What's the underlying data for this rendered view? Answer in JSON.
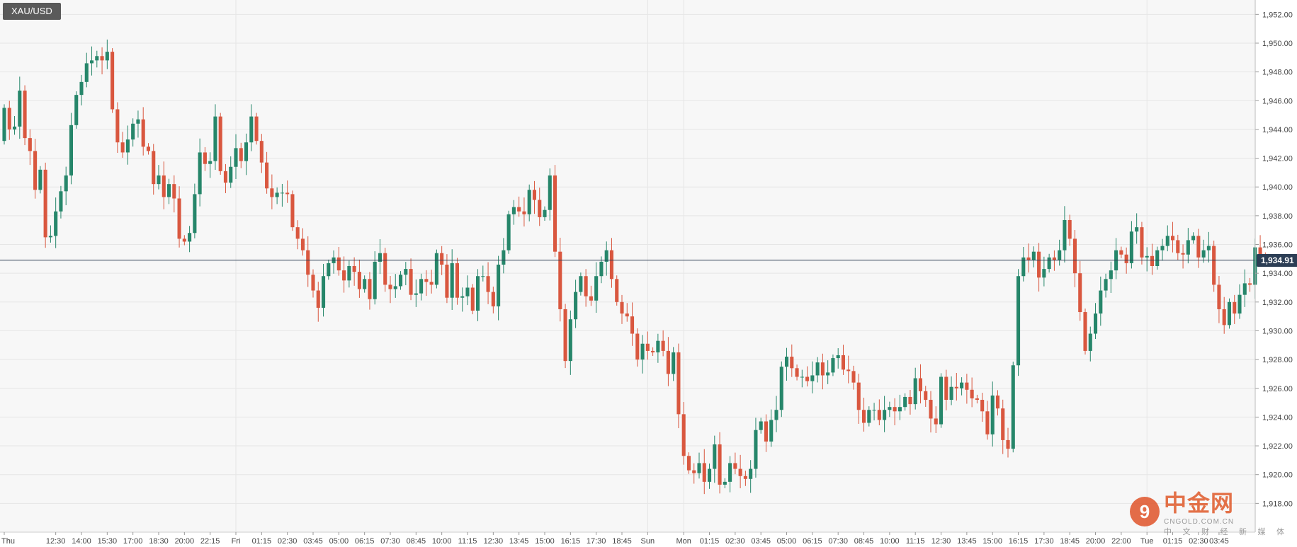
{
  "symbol": "XAU/USD",
  "current_price_label": "1,934.91",
  "watermark": {
    "logo_glyph": "9",
    "name": "中金网",
    "domain": "CNGOLD.COM.CN",
    "tagline": "中 文 财 经 新 媒 体"
  },
  "colors": {
    "up": "#26866a",
    "down": "#d9573f",
    "grid": "#e6e6e6",
    "price_line": "#2c3e55",
    "axis_text": "#444444",
    "background": "#f7f7f7"
  },
  "chart_data": {
    "type": "candlestick",
    "title": "",
    "xlabel": "",
    "ylabel": "",
    "ylim": [
      1916,
      1953
    ],
    "y_ticks": [
      "1,918.00",
      "1,920.00",
      "1,922.00",
      "1,924.00",
      "1,926.00",
      "1,928.00",
      "1,930.00",
      "1,932.00",
      "1,934.00",
      "1,936.00",
      "1,938.00",
      "1,940.00",
      "1,942.00",
      "1,944.00",
      "1,946.00",
      "1,948.00",
      "1,950.00",
      "1,952.00"
    ],
    "x_ticks": [
      "Thu",
      "12:30",
      "14:00",
      "15:30",
      "17:00",
      "18:30",
      "20:00",
      "22:15",
      "Fri",
      "01:15",
      "02:30",
      "03:45",
      "05:00",
      "06:15",
      "07:30",
      "08:45",
      "10:00",
      "11:15",
      "12:30",
      "13:45",
      "15:00",
      "16:15",
      "17:30",
      "18:45",
      "Sun",
      "Mon",
      "01:15",
      "02:30",
      "03:45",
      "05:00",
      "06:15",
      "07:30",
      "08:45",
      "10:00",
      "11:15",
      "12:30",
      "13:45",
      "15:00",
      "16:15",
      "17:30",
      "18:45",
      "20:00",
      "22:00",
      "Tue",
      "01:15",
      "02:30",
      "03:45"
    ],
    "x_tick_slots": [
      0,
      10,
      15,
      20,
      25,
      30,
      35,
      40,
      45,
      50,
      55,
      60,
      65,
      70,
      75,
      80,
      85,
      90,
      95,
      100,
      105,
      110,
      115,
      120,
      125,
      132,
      137,
      142,
      147,
      152,
      157,
      162,
      167,
      172,
      177,
      182,
      187,
      192,
      197,
      202,
      207,
      212,
      217,
      222,
      227,
      232,
      236
    ],
    "day_separator_slots": [
      45,
      125,
      132,
      222
    ],
    "current_price": 1934.91,
    "closes": [
      1945.5,
      1944,
      1944.2,
      1946.7,
      1943.4,
      1942.5,
      1939.8,
      1941.2,
      1936.5,
      1936.6,
      1938.3,
      1939.7,
      1940.8,
      1944.3,
      1946.4,
      1947.3,
      1948.6,
      1948.8,
      1949.1,
      1948.8,
      1949.4,
      1945.4,
      1943.1,
      1942.4,
      1943.3,
      1944.4,
      1944.7,
      1942.8,
      1942.5,
      1940.2,
      1940.8,
      1939.3,
      1940.2,
      1939.2,
      1936.4,
      1936.2,
      1936.8,
      1939.5,
      1942.4,
      1941.6,
      1941.8,
      1944.9,
      1941.1,
      1940.3,
      1941.4,
      1942.7,
      1941.8,
      1943.1,
      1944.9,
      1943.2,
      1941.7,
      1939.9,
      1939.3,
      1939.6,
      1939.6,
      1939.5,
      1937.2,
      1936.4,
      1935.6,
      1933.9,
      1932.8,
      1931.6,
      1933.8,
      1934.7,
      1935.1,
      1934.2,
      1933.5,
      1934.5,
      1934.1,
      1932.9,
      1933.6,
      1932.2,
      1934.8,
      1935.4,
      1933.2,
      1932.9,
      1933.1,
      1933.9,
      1934.3,
      1932.5,
      1932.6,
      1933.6,
      1933.4,
      1933.2,
      1935.4,
      1934.6,
      1932.3,
      1934.7,
      1932.3,
      1932.4,
      1933,
      1931.4,
      1933.8,
      1933.8,
      1932.7,
      1931.7,
      1934.6,
      1935.6,
      1938.1,
      1938.6,
      1938.3,
      1938.1,
      1939.8,
      1939.1,
      1937.9,
      1938.4,
      1940.8,
      1935.5,
      1931.5,
      1927.9,
      1930.8,
      1932.7,
      1933.8,
      1932.4,
      1932.1,
      1933.8,
      1934.8,
      1935.6,
      1933.6,
      1932,
      1931.2,
      1931,
      1929.8,
      1928,
      1929.1,
      1928.6,
      1928.5,
      1929.3,
      1928.6,
      1927,
      1928.5,
      1924.2,
      1921.3,
      1920.3,
      1920.1,
      1920.8,
      1919.5,
      1920.4,
      1922.1,
      1919.3,
      1919.5,
      1920.8,
      1920.4,
      1919.9,
      1919.7,
      1920.4,
      1923.1,
      1923.7,
      1922.3,
      1923.8,
      1924.5,
      1927.5,
      1928.2,
      1927.4,
      1926.8,
      1926.8,
      1926.5,
      1926.9,
      1927.8,
      1926.9,
      1927.1,
      1928.1,
      1928.3,
      1927.3,
      1927.2,
      1926.4,
      1924.5,
      1923.6,
      1924.5,
      1924.5,
      1923.8,
      1924.5,
      1924.7,
      1924.4,
      1924.7,
      1925.4,
      1924.9,
      1926.7,
      1925.8,
      1925.2,
      1923.9,
      1923.5,
      1926.8,
      1925.2,
      1926.1,
      1926,
      1926.4,
      1925.9,
      1925.3,
      1925.2,
      1924.4,
      1922.8,
      1925.5,
      1924.6,
      1922.4,
      1921.8,
      1927.6,
      1933.8,
      1935.1,
      1934.9,
      1935.5,
      1933.7,
      1934.3,
      1935.1,
      1934.9,
      1935.6,
      1937.7,
      1936.4,
      1934,
      1931.3,
      1928.6,
      1929.8,
      1931.2,
      1932.8,
      1933.6,
      1934.2,
      1935.6,
      1935.3,
      1934.7,
      1936.9,
      1937.2,
      1935.1,
      1935.2,
      1934.5,
      1935.6,
      1935.9,
      1936.6,
      1936.3,
      1935.4,
      1935.3,
      1936.3,
      1936.6,
      1935.1,
      1935.6,
      1935.9,
      1933.2,
      1931.5,
      1930.4,
      1932,
      1931.2,
      1932.5,
      1933.3,
      1933.2,
      1935.8,
      1935.2,
      1934.9
    ],
    "open": 1943.2
  }
}
